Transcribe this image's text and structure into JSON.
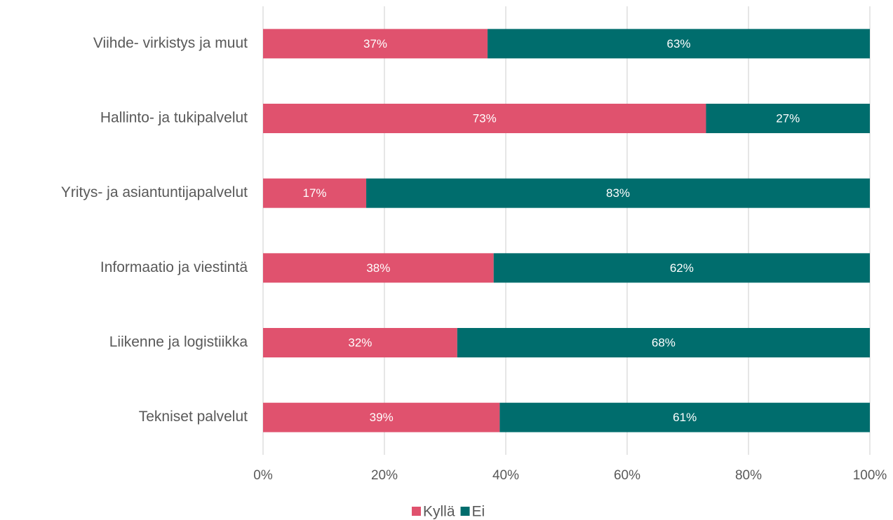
{
  "chart_data": {
    "type": "stacked-bar",
    "orientation": "horizontal",
    "categories": [
      "Viihde- virkistys ja muut",
      "Hallinto- ja tukipalvelut",
      "Yritys- ja asiantuntijapalvelut",
      "Informaatio ja viestintä",
      "Liikenne ja logistiikka",
      "Tekniset palvelut"
    ],
    "series": [
      {
        "name": "Kyllä",
        "color": "#e0526e",
        "values": [
          37,
          73,
          17,
          38,
          32,
          39
        ],
        "value_labels": [
          "37%",
          "73%",
          "17%",
          "38%",
          "32%",
          "39%"
        ]
      },
      {
        "name": "Ei",
        "color": "#006d6d",
        "values": [
          63,
          27,
          83,
          62,
          68,
          61
        ],
        "value_labels": [
          "63%",
          "27%",
          "83%",
          "62%",
          "68%",
          "61%"
        ]
      }
    ],
    "xlim": [
      0,
      100
    ],
    "xticks": [
      {
        "value": 0,
        "label": "0%"
      },
      {
        "value": 20,
        "label": "20%"
      },
      {
        "value": 40,
        "label": "40%"
      },
      {
        "value": 60,
        "label": "60%"
      },
      {
        "value": 80,
        "label": "80%"
      },
      {
        "value": 100,
        "label": "100%"
      }
    ],
    "grid": true,
    "legend": "bottom"
  }
}
